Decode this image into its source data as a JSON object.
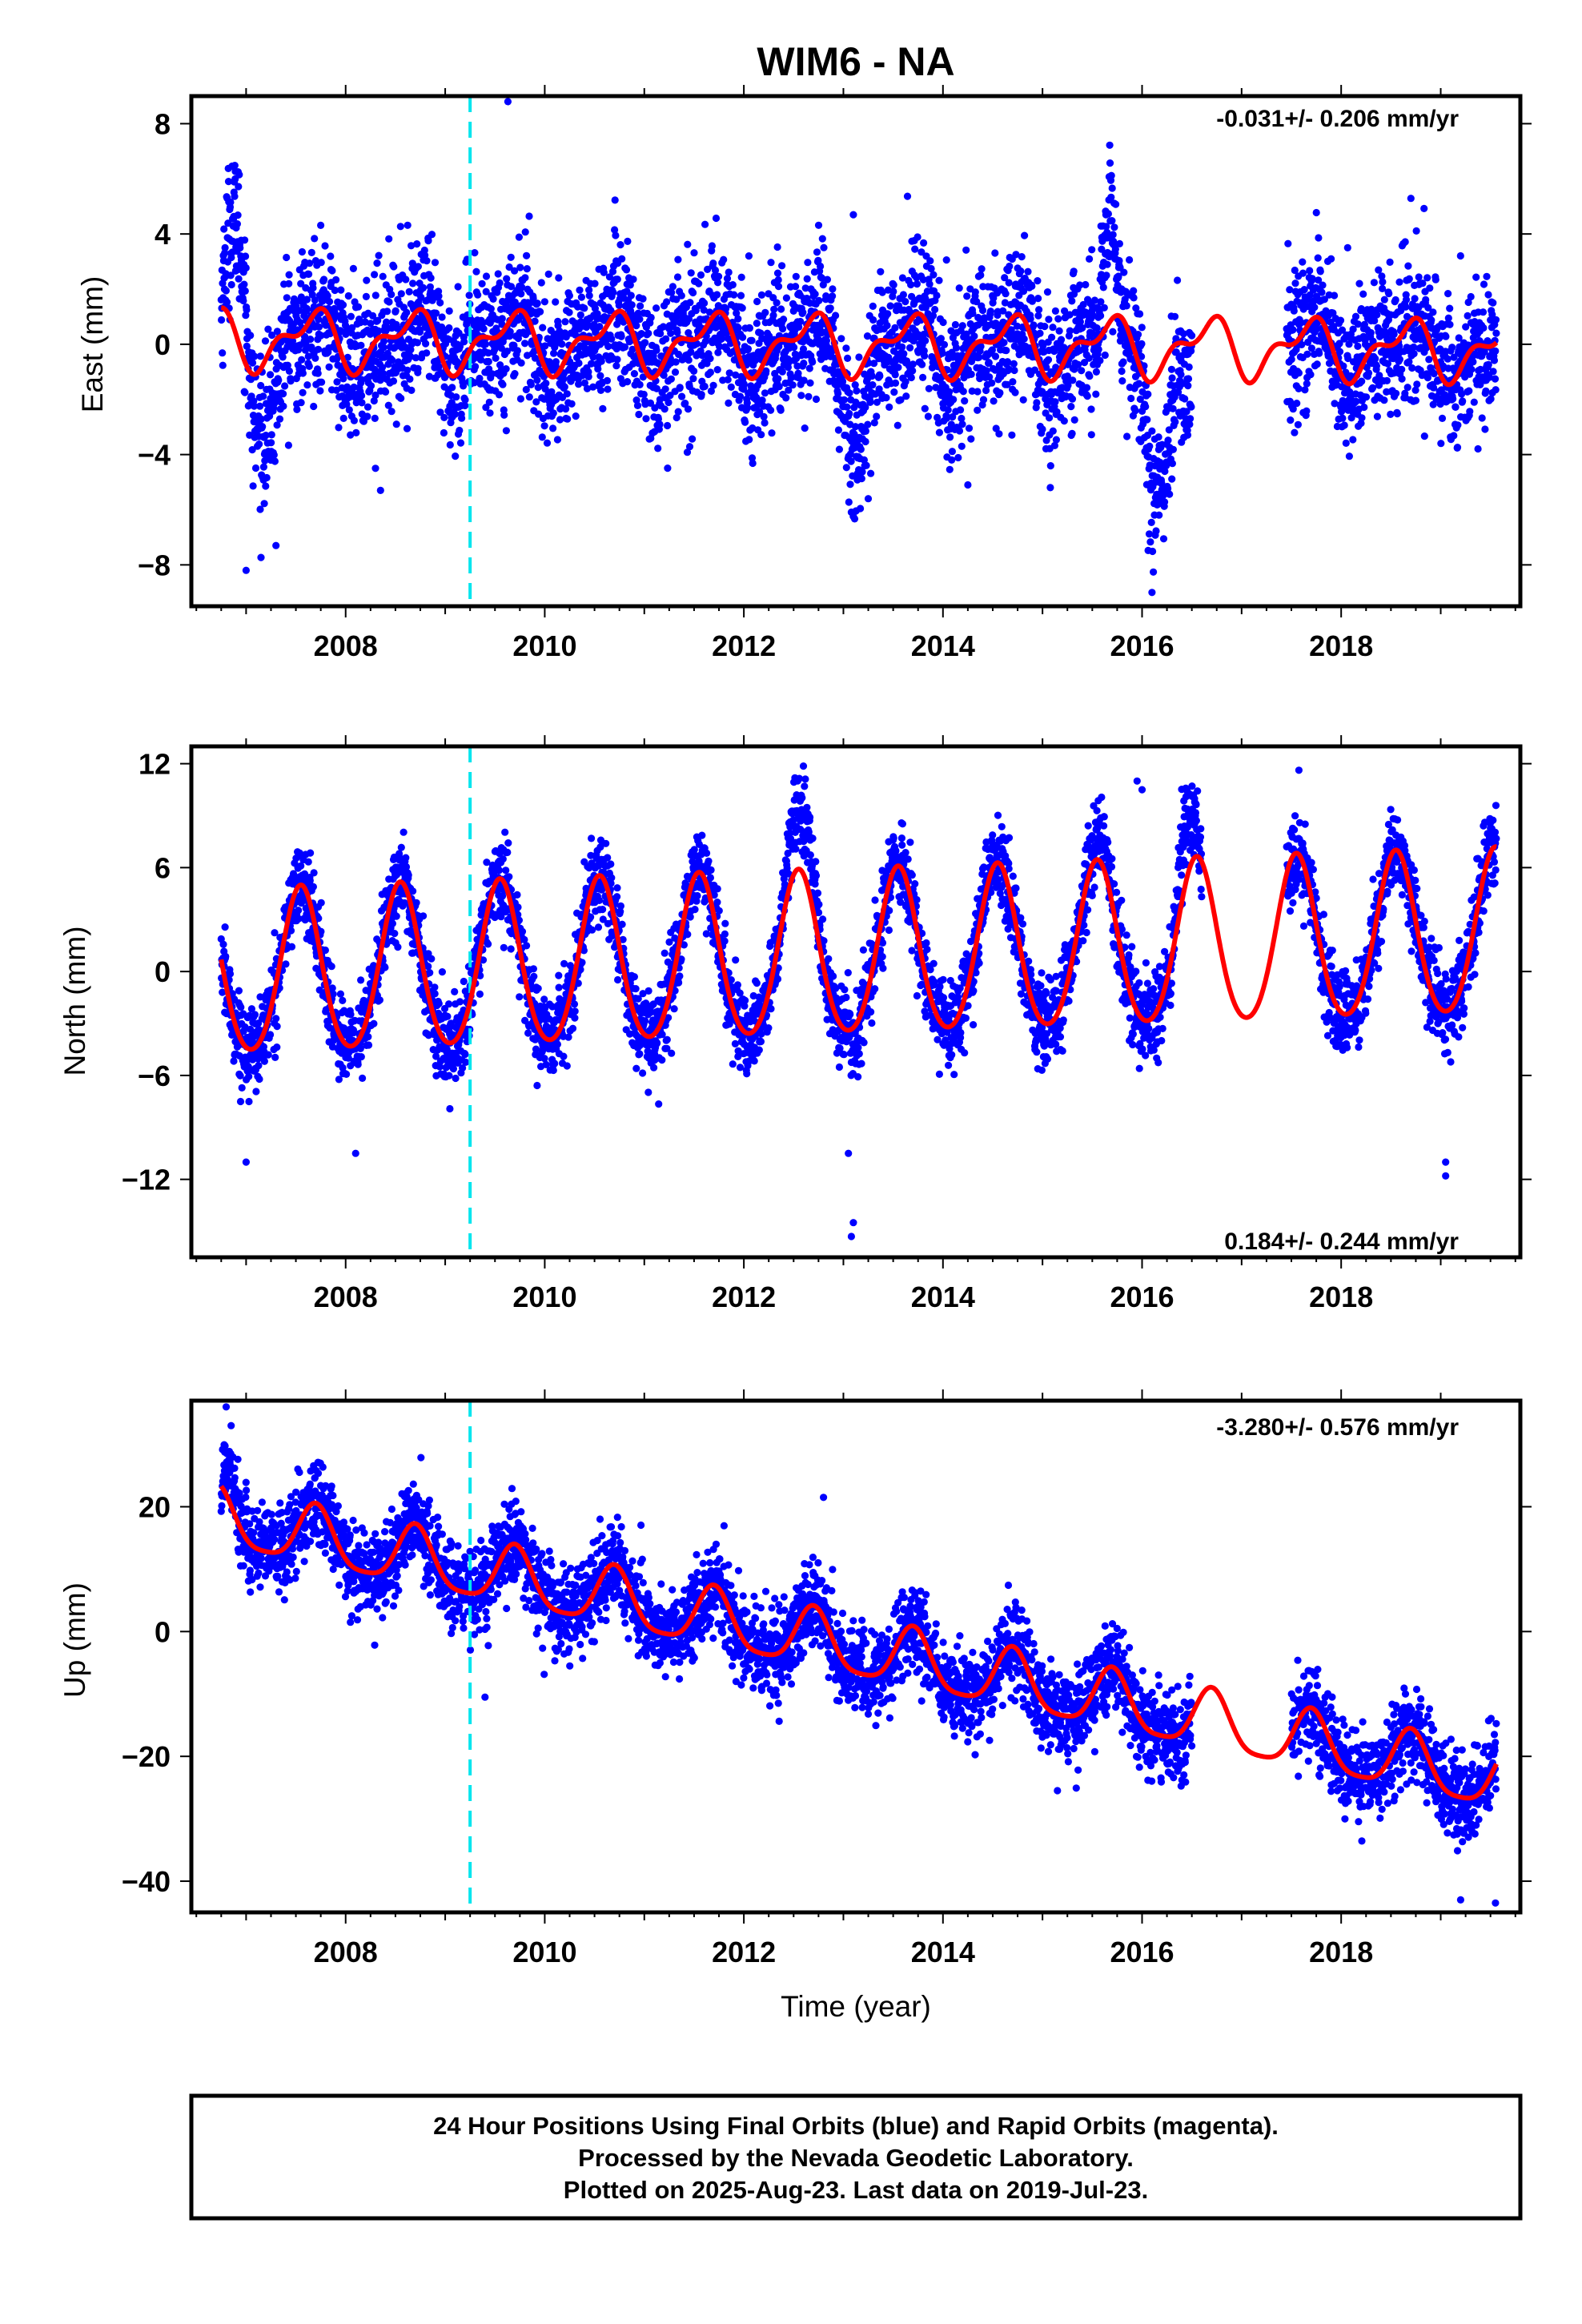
{
  "figure_title": "WIM6 - NA",
  "xlabel": "Time (year)",
  "caption": {
    "lines": [
      "24 Hour Positions Using Final Orbits (blue) and Rapid Orbits (magenta).",
      "Processed by the Nevada Geodetic Laboratory.",
      "Plotted on 2025-Aug-23. Last data on 2019-Jul-23."
    ]
  },
  "colors": {
    "points": "#0000ff",
    "model": "#ff0000",
    "event_line": "#00e5ee",
    "frame": "#000000"
  },
  "chart_data": [
    {
      "type": "scatter",
      "name": "east",
      "ylabel": "East (mm)",
      "rate_text": "-0.031+/- 0.206 mm/yr",
      "rate_position": "top-right",
      "xlim": [
        2006.45,
        2019.8
      ],
      "ylim": [
        -9.5,
        9.0
      ],
      "xticks": [
        2008,
        2010,
        2012,
        2014,
        2016,
        2018
      ],
      "yticks": [
        8,
        4,
        0,
        -4,
        -8
      ],
      "ytick_labels": [
        "8",
        "4",
        "0",
        "−4",
        "−8"
      ],
      "event_line_x": 2009.25,
      "data_range": [
        2006.75,
        2019.56
      ],
      "gaps": [
        [
          2016.5,
          2017.45
        ]
      ],
      "model": {
        "offset": 0.0,
        "trend": -0.031,
        "ref_year": 2013.0,
        "annual_amp": 0.9,
        "annual_phase_peak": 2008.65,
        "semiannual_amp": 0.5,
        "semiannual_phase_peak": 2008.8
      },
      "scatter_sigma": 1.3,
      "features": [
        {
          "start": 2006.75,
          "end": 2007.05,
          "offset": 4.0
        },
        {
          "start": 2007.0,
          "end": 2007.4,
          "offset": -2.5
        },
        {
          "start": 2015.55,
          "end": 2015.8,
          "offset": 3.2
        },
        {
          "start": 2016.0,
          "end": 2016.35,
          "offset": -4.5
        },
        {
          "start": 2016.35,
          "end": 2016.5,
          "offset": -2.0
        },
        {
          "start": 2012.9,
          "end": 2013.4,
          "offset": -2.2
        }
      ],
      "outliers": [
        [
          2009.63,
          8.8
        ],
        [
          2007.0,
          -8.2
        ],
        [
          2007.3,
          -7.3
        ],
        [
          2016.1,
          -9.0
        ],
        [
          2013.25,
          -5.6
        ],
        [
          2008.35,
          -5.3
        ],
        [
          2013.1,
          4.7
        ],
        [
          2014.25,
          -5.1
        ],
        [
          2008.3,
          -4.5
        ]
      ]
    },
    {
      "type": "scatter",
      "name": "north",
      "ylabel": "North (mm)",
      "rate_text": "0.184+/- 0.244 mm/yr",
      "rate_position": "bottom-right",
      "xlim": [
        2006.45,
        2019.8
      ],
      "ylim": [
        -16.5,
        13.0
      ],
      "xticks": [
        2008,
        2010,
        2012,
        2014,
        2016,
        2018
      ],
      "yticks": [
        12,
        6,
        0,
        -6,
        -12
      ],
      "ytick_labels": [
        "12",
        "6",
        "0",
        "−6",
        "−12"
      ],
      "event_line_x": 2009.25,
      "data_range": [
        2006.75,
        2019.56
      ],
      "gaps": [
        [
          2016.6,
          2017.45
        ]
      ],
      "model": {
        "offset": 0.8,
        "trend": 0.184,
        "ref_year": 2013.0,
        "annual_amp": 4.7,
        "annual_phase_peak": 2012.55,
        "semiannual_amp": 0.5,
        "semiannual_phase_peak": 2012.55
      },
      "scatter_sigma": 1.2,
      "features": [
        {
          "start": 2012.35,
          "end": 2012.8,
          "offset": 3.5
        },
        {
          "start": 2016.3,
          "end": 2016.6,
          "offset": 3.5
        },
        {
          "start": 2015.5,
          "end": 2015.7,
          "offset": 1.5
        }
      ],
      "outliers": [
        [
          2013.1,
          -14.5
        ],
        [
          2013.08,
          -15.3
        ],
        [
          2019.05,
          -11.0
        ],
        [
          2019.05,
          -11.8
        ],
        [
          2015.95,
          11.0
        ],
        [
          2007.0,
          -11.0
        ],
        [
          2008.1,
          -10.5
        ],
        [
          2013.05,
          -10.5
        ],
        [
          2016.0,
          10.5
        ]
      ]
    },
    {
      "type": "scatter",
      "name": "up",
      "ylabel": "Up (mm)",
      "rate_text": "-3.280+/- 0.576 mm/yr",
      "rate_position": "top-right",
      "xlim": [
        2006.45,
        2019.8
      ],
      "ylim": [
        -45,
        37
      ],
      "xticks": [
        2008,
        2010,
        2012,
        2014,
        2016,
        2018
      ],
      "yticks": [
        20,
        0,
        -20,
        -40
      ],
      "ytick_labels": [
        "20",
        "0",
        "−20",
        "−40"
      ],
      "event_line_x": 2009.25,
      "data_range": [
        2006.75,
        2019.56
      ],
      "gaps": [
        [
          2016.5,
          2017.5
        ]
      ],
      "model": {
        "offset": -2.5,
        "trend": -3.28,
        "ref_year": 2013.0,
        "annual_amp": 4.7,
        "annual_phase_peak": 2012.7,
        "semiannual_amp": 1.0,
        "semiannual_phase_peak": 2012.7
      },
      "scatter_sigma": 3.5,
      "features": [
        {
          "start": 2006.75,
          "end": 2006.95,
          "offset": 6.0
        }
      ],
      "outliers": [
        [
          2006.8,
          36.0
        ],
        [
          2006.85,
          33.0
        ],
        [
          2019.2,
          -43.0
        ],
        [
          2019.55,
          -43.5
        ],
        [
          2015.15,
          -25.5
        ],
        [
          2009.4,
          -10.5
        ],
        [
          2012.8,
          21.5
        ]
      ]
    }
  ]
}
